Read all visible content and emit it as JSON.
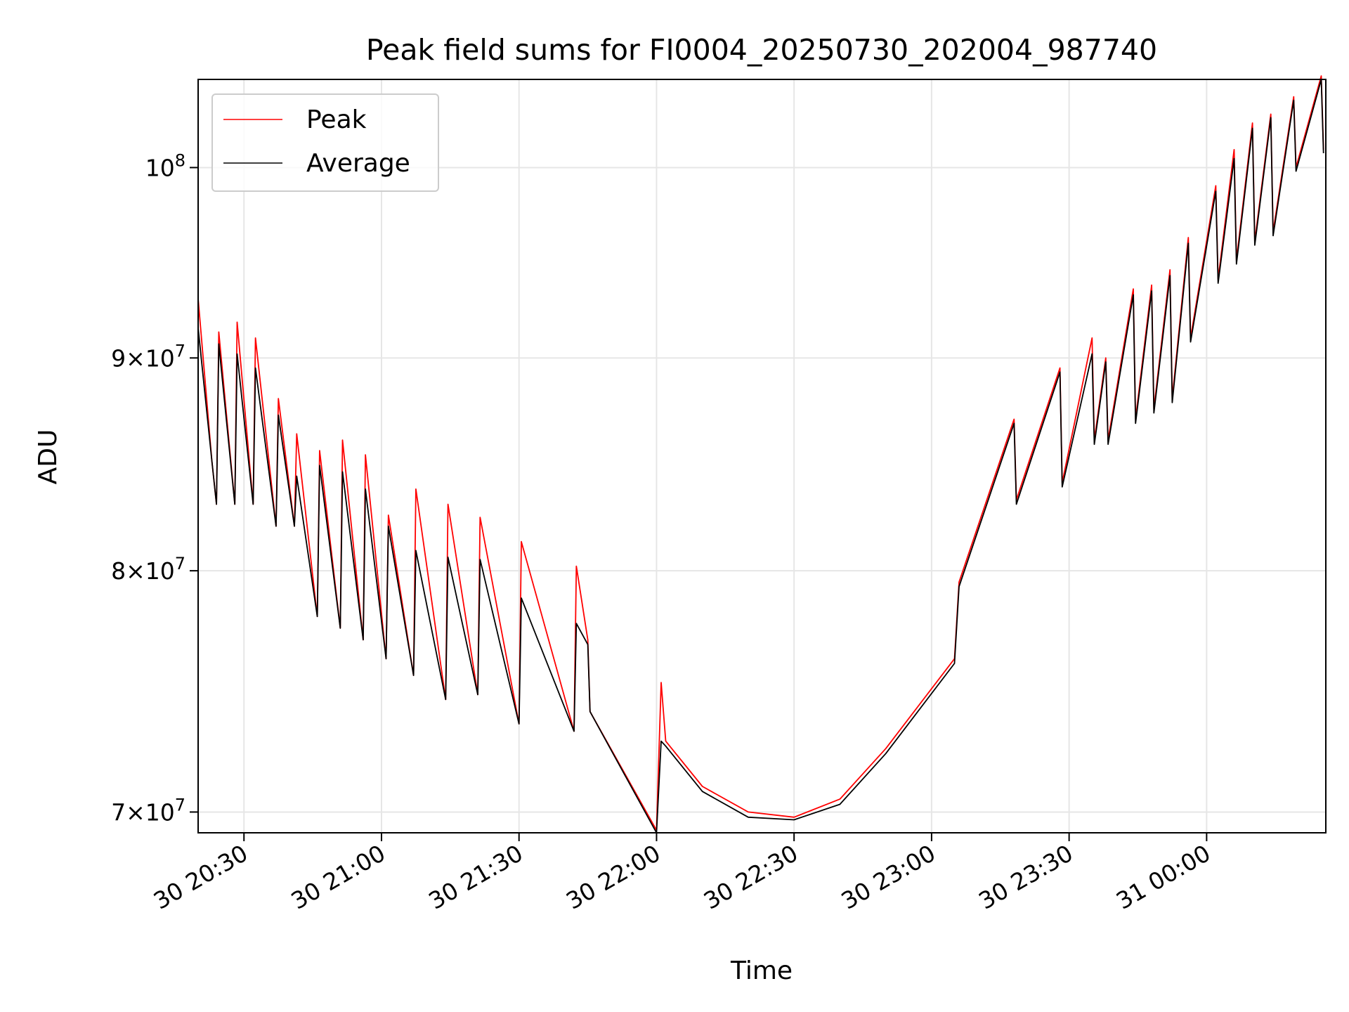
{
  "chart_data": {
    "type": "line",
    "title": "Peak field sums for FI0004_20250730_202004_987740",
    "xlabel": "Time",
    "ylabel": "ADU",
    "y_scale": "log",
    "xlim": [
      "2025-07-30 20:20:00",
      "2025-07-31 00:26:00"
    ],
    "ylim": [
      69200000,
      105000000
    ],
    "grid": true,
    "legend_position": "top-left",
    "x_ticks": [
      {
        "value": "2025-07-30 20:30",
        "label": "30 20:30"
      },
      {
        "value": "2025-07-30 21:00",
        "label": "30 21:00"
      },
      {
        "value": "2025-07-30 21:30",
        "label": "30 21:30"
      },
      {
        "value": "2025-07-30 22:00",
        "label": "30 22:00"
      },
      {
        "value": "2025-07-30 22:30",
        "label": "30 22:30"
      },
      {
        "value": "2025-07-30 23:00",
        "label": "30 23:00"
      },
      {
        "value": "2025-07-30 23:30",
        "label": "30 23:30"
      },
      {
        "value": "2025-07-31 00:00",
        "label": "31 00:00"
      }
    ],
    "y_ticks": [
      {
        "value": 70000000,
        "base": "7",
        "exp": "7"
      },
      {
        "value": 80000000,
        "base": "8",
        "exp": "7"
      },
      {
        "value": 90000000,
        "base": "9",
        "exp": "7"
      },
      {
        "value": 100000000,
        "base": "",
        "exp": "8"
      }
    ],
    "series": [
      {
        "name": "Peak",
        "color": "#ff0000",
        "points": [
          [
            "2025-07-30 20:20",
            93000000
          ],
          [
            "2025-07-30 20:23",
            85000000
          ],
          [
            "2025-07-30 20:24",
            83000000
          ],
          [
            "2025-07-30 20:24:30",
            91300000
          ],
          [
            "2025-07-30 20:28",
            83000000
          ],
          [
            "2025-07-30 20:28:30",
            91800000
          ],
          [
            "2025-07-30 20:32",
            83000000
          ],
          [
            "2025-07-30 20:32:30",
            91000000
          ],
          [
            "2025-07-30 20:37",
            82000000
          ],
          [
            "2025-07-30 20:37:30",
            88000000
          ],
          [
            "2025-07-30 20:41",
            82000000
          ],
          [
            "2025-07-30 20:41:30",
            86300000
          ],
          [
            "2025-07-30 20:46",
            78000000
          ],
          [
            "2025-07-30 20:46:30",
            85500000
          ],
          [
            "2025-07-30 20:51",
            77500000
          ],
          [
            "2025-07-30 20:51:30",
            86000000
          ],
          [
            "2025-07-30 20:56",
            77000000
          ],
          [
            "2025-07-30 20:56:30",
            85300000
          ],
          [
            "2025-07-30 21:01",
            76200000
          ],
          [
            "2025-07-30 21:01:30",
            82500000
          ],
          [
            "2025-07-30 21:07",
            75500000
          ],
          [
            "2025-07-30 21:07:30",
            83700000
          ],
          [
            "2025-07-30 21:14",
            74500000
          ],
          [
            "2025-07-30 21:14:30",
            83000000
          ],
          [
            "2025-07-30 21:21",
            74700000
          ],
          [
            "2025-07-30 21:21:30",
            82400000
          ],
          [
            "2025-07-30 21:30",
            73500000
          ],
          [
            "2025-07-30 21:30:30",
            81300000
          ],
          [
            "2025-07-30 21:42",
            73200000
          ],
          [
            "2025-07-30 21:42:30",
            80200000
          ],
          [
            "2025-07-30 21:45",
            77000000
          ],
          [
            "2025-07-30 21:45:30",
            74000000
          ],
          [
            "2025-07-30 22:00",
            69300000
          ],
          [
            "2025-07-30 22:01",
            75200000
          ],
          [
            "2025-07-30 22:02",
            72800000
          ],
          [
            "2025-07-30 22:10",
            71000000
          ],
          [
            "2025-07-30 22:20",
            70000000
          ],
          [
            "2025-07-30 22:30",
            69800000
          ],
          [
            "2025-07-30 22:40",
            70500000
          ],
          [
            "2025-07-30 22:50",
            72500000
          ],
          [
            "2025-07-30 23:05",
            76200000
          ],
          [
            "2025-07-30 23:06",
            79500000
          ],
          [
            "2025-07-30 23:18",
            87000000
          ],
          [
            "2025-07-30 23:18:30",
            83200000
          ],
          [
            "2025-07-30 23:28",
            89500000
          ],
          [
            "2025-07-30 23:28:30",
            84000000
          ],
          [
            "2025-07-30 23:35",
            91000000
          ],
          [
            "2025-07-30 23:35:30",
            86000000
          ],
          [
            "2025-07-30 23:38",
            90000000
          ],
          [
            "2025-07-30 23:38:30",
            86000000
          ],
          [
            "2025-07-30 23:44",
            93500000
          ],
          [
            "2025-07-30 23:44:30",
            87000000
          ],
          [
            "2025-07-30 23:48",
            93700000
          ],
          [
            "2025-07-30 23:48:30",
            87500000
          ],
          [
            "2025-07-30 23:52",
            94500000
          ],
          [
            "2025-07-30 23:52:30",
            88000000
          ],
          [
            "2025-07-30 23:56",
            96200000
          ],
          [
            "2025-07-30 23:56:30",
            91000000
          ],
          [
            "2025-07-31 00:02",
            99000000
          ],
          [
            "2025-07-31 00:02:30",
            94000000
          ],
          [
            "2025-07-31 00:06",
            101000000
          ],
          [
            "2025-07-31 00:06:30",
            95000000
          ],
          [
            "2025-07-31 00:10",
            102500000
          ],
          [
            "2025-07-31 00:10:30",
            96000000
          ],
          [
            "2025-07-31 00:14",
            103000000
          ],
          [
            "2025-07-31 00:14:30",
            96500000
          ],
          [
            "2025-07-31 00:19",
            104000000
          ],
          [
            "2025-07-31 00:19:30",
            100000000
          ],
          [
            "2025-07-31 00:25",
            105200000
          ],
          [
            "2025-07-31 00:25:30",
            101000000
          ]
        ]
      },
      {
        "name": "Average",
        "color": "#000000",
        "points": [
          [
            "2025-07-30 20:20",
            91500000
          ],
          [
            "2025-07-30 20:23",
            85000000
          ],
          [
            "2025-07-30 20:24",
            83000000
          ],
          [
            "2025-07-30 20:24:30",
            90700000
          ],
          [
            "2025-07-30 20:28",
            83000000
          ],
          [
            "2025-07-30 20:28:30",
            90200000
          ],
          [
            "2025-07-30 20:32",
            83000000
          ],
          [
            "2025-07-30 20:32:30",
            89500000
          ],
          [
            "2025-07-30 20:37",
            82000000
          ],
          [
            "2025-07-30 20:37:30",
            87200000
          ],
          [
            "2025-07-30 20:41",
            82000000
          ],
          [
            "2025-07-30 20:41:30",
            84300000
          ],
          [
            "2025-07-30 20:46",
            78000000
          ],
          [
            "2025-07-30 20:46:30",
            84800000
          ],
          [
            "2025-07-30 20:51",
            77500000
          ],
          [
            "2025-07-30 20:51:30",
            84500000
          ],
          [
            "2025-07-30 20:56",
            77000000
          ],
          [
            "2025-07-30 20:56:30",
            83700000
          ],
          [
            "2025-07-30 21:01",
            76200000
          ],
          [
            "2025-07-30 21:01:30",
            82000000
          ],
          [
            "2025-07-30 21:07",
            75500000
          ],
          [
            "2025-07-30 21:07:30",
            80900000
          ],
          [
            "2025-07-30 21:14",
            74500000
          ],
          [
            "2025-07-30 21:14:30",
            80600000
          ],
          [
            "2025-07-30 21:21",
            74700000
          ],
          [
            "2025-07-30 21:21:30",
            80500000
          ],
          [
            "2025-07-30 21:30",
            73500000
          ],
          [
            "2025-07-30 21:30:30",
            78800000
          ],
          [
            "2025-07-30 21:42",
            73200000
          ],
          [
            "2025-07-30 21:42:30",
            77700000
          ],
          [
            "2025-07-30 21:45",
            76800000
          ],
          [
            "2025-07-30 21:45:30",
            74000000
          ],
          [
            "2025-07-30 22:00",
            69200000
          ],
          [
            "2025-07-30 22:01",
            72800000
          ],
          [
            "2025-07-30 22:02",
            72600000
          ],
          [
            "2025-07-30 22:10",
            70800000
          ],
          [
            "2025-07-30 22:20",
            69800000
          ],
          [
            "2025-07-30 22:30",
            69700000
          ],
          [
            "2025-07-30 22:40",
            70300000
          ],
          [
            "2025-07-30 22:50",
            72300000
          ],
          [
            "2025-07-30 23:05",
            76000000
          ],
          [
            "2025-07-30 23:06",
            79300000
          ],
          [
            "2025-07-30 23:18",
            86800000
          ],
          [
            "2025-07-30 23:18:30",
            83000000
          ],
          [
            "2025-07-30 23:28",
            89300000
          ],
          [
            "2025-07-30 23:28:30",
            83800000
          ],
          [
            "2025-07-30 23:35",
            90200000
          ],
          [
            "2025-07-30 23:35:30",
            85800000
          ],
          [
            "2025-07-30 23:38",
            89800000
          ],
          [
            "2025-07-30 23:38:30",
            85800000
          ],
          [
            "2025-07-30 23:44",
            93200000
          ],
          [
            "2025-07-30 23:44:30",
            86800000
          ],
          [
            "2025-07-30 23:48",
            93400000
          ],
          [
            "2025-07-30 23:48:30",
            87300000
          ],
          [
            "2025-07-30 23:52",
            94200000
          ],
          [
            "2025-07-30 23:52:30",
            87800000
          ],
          [
            "2025-07-30 23:56",
            95900000
          ],
          [
            "2025-07-30 23:56:30",
            90800000
          ],
          [
            "2025-07-31 00:02",
            98700000
          ],
          [
            "2025-07-31 00:02:30",
            93800000
          ],
          [
            "2025-07-31 00:06",
            100500000
          ],
          [
            "2025-07-31 00:06:30",
            94800000
          ],
          [
            "2025-07-31 00:10",
            102200000
          ],
          [
            "2025-07-31 00:10:30",
            95800000
          ],
          [
            "2025-07-31 00:14",
            102800000
          ],
          [
            "2025-07-31 00:14:30",
            96300000
          ],
          [
            "2025-07-31 00:19",
            103800000
          ],
          [
            "2025-07-31 00:19:30",
            99800000
          ],
          [
            "2025-07-31 00:25",
            105000000
          ],
          [
            "2025-07-31 00:25:30",
            100800000
          ]
        ]
      }
    ]
  }
}
